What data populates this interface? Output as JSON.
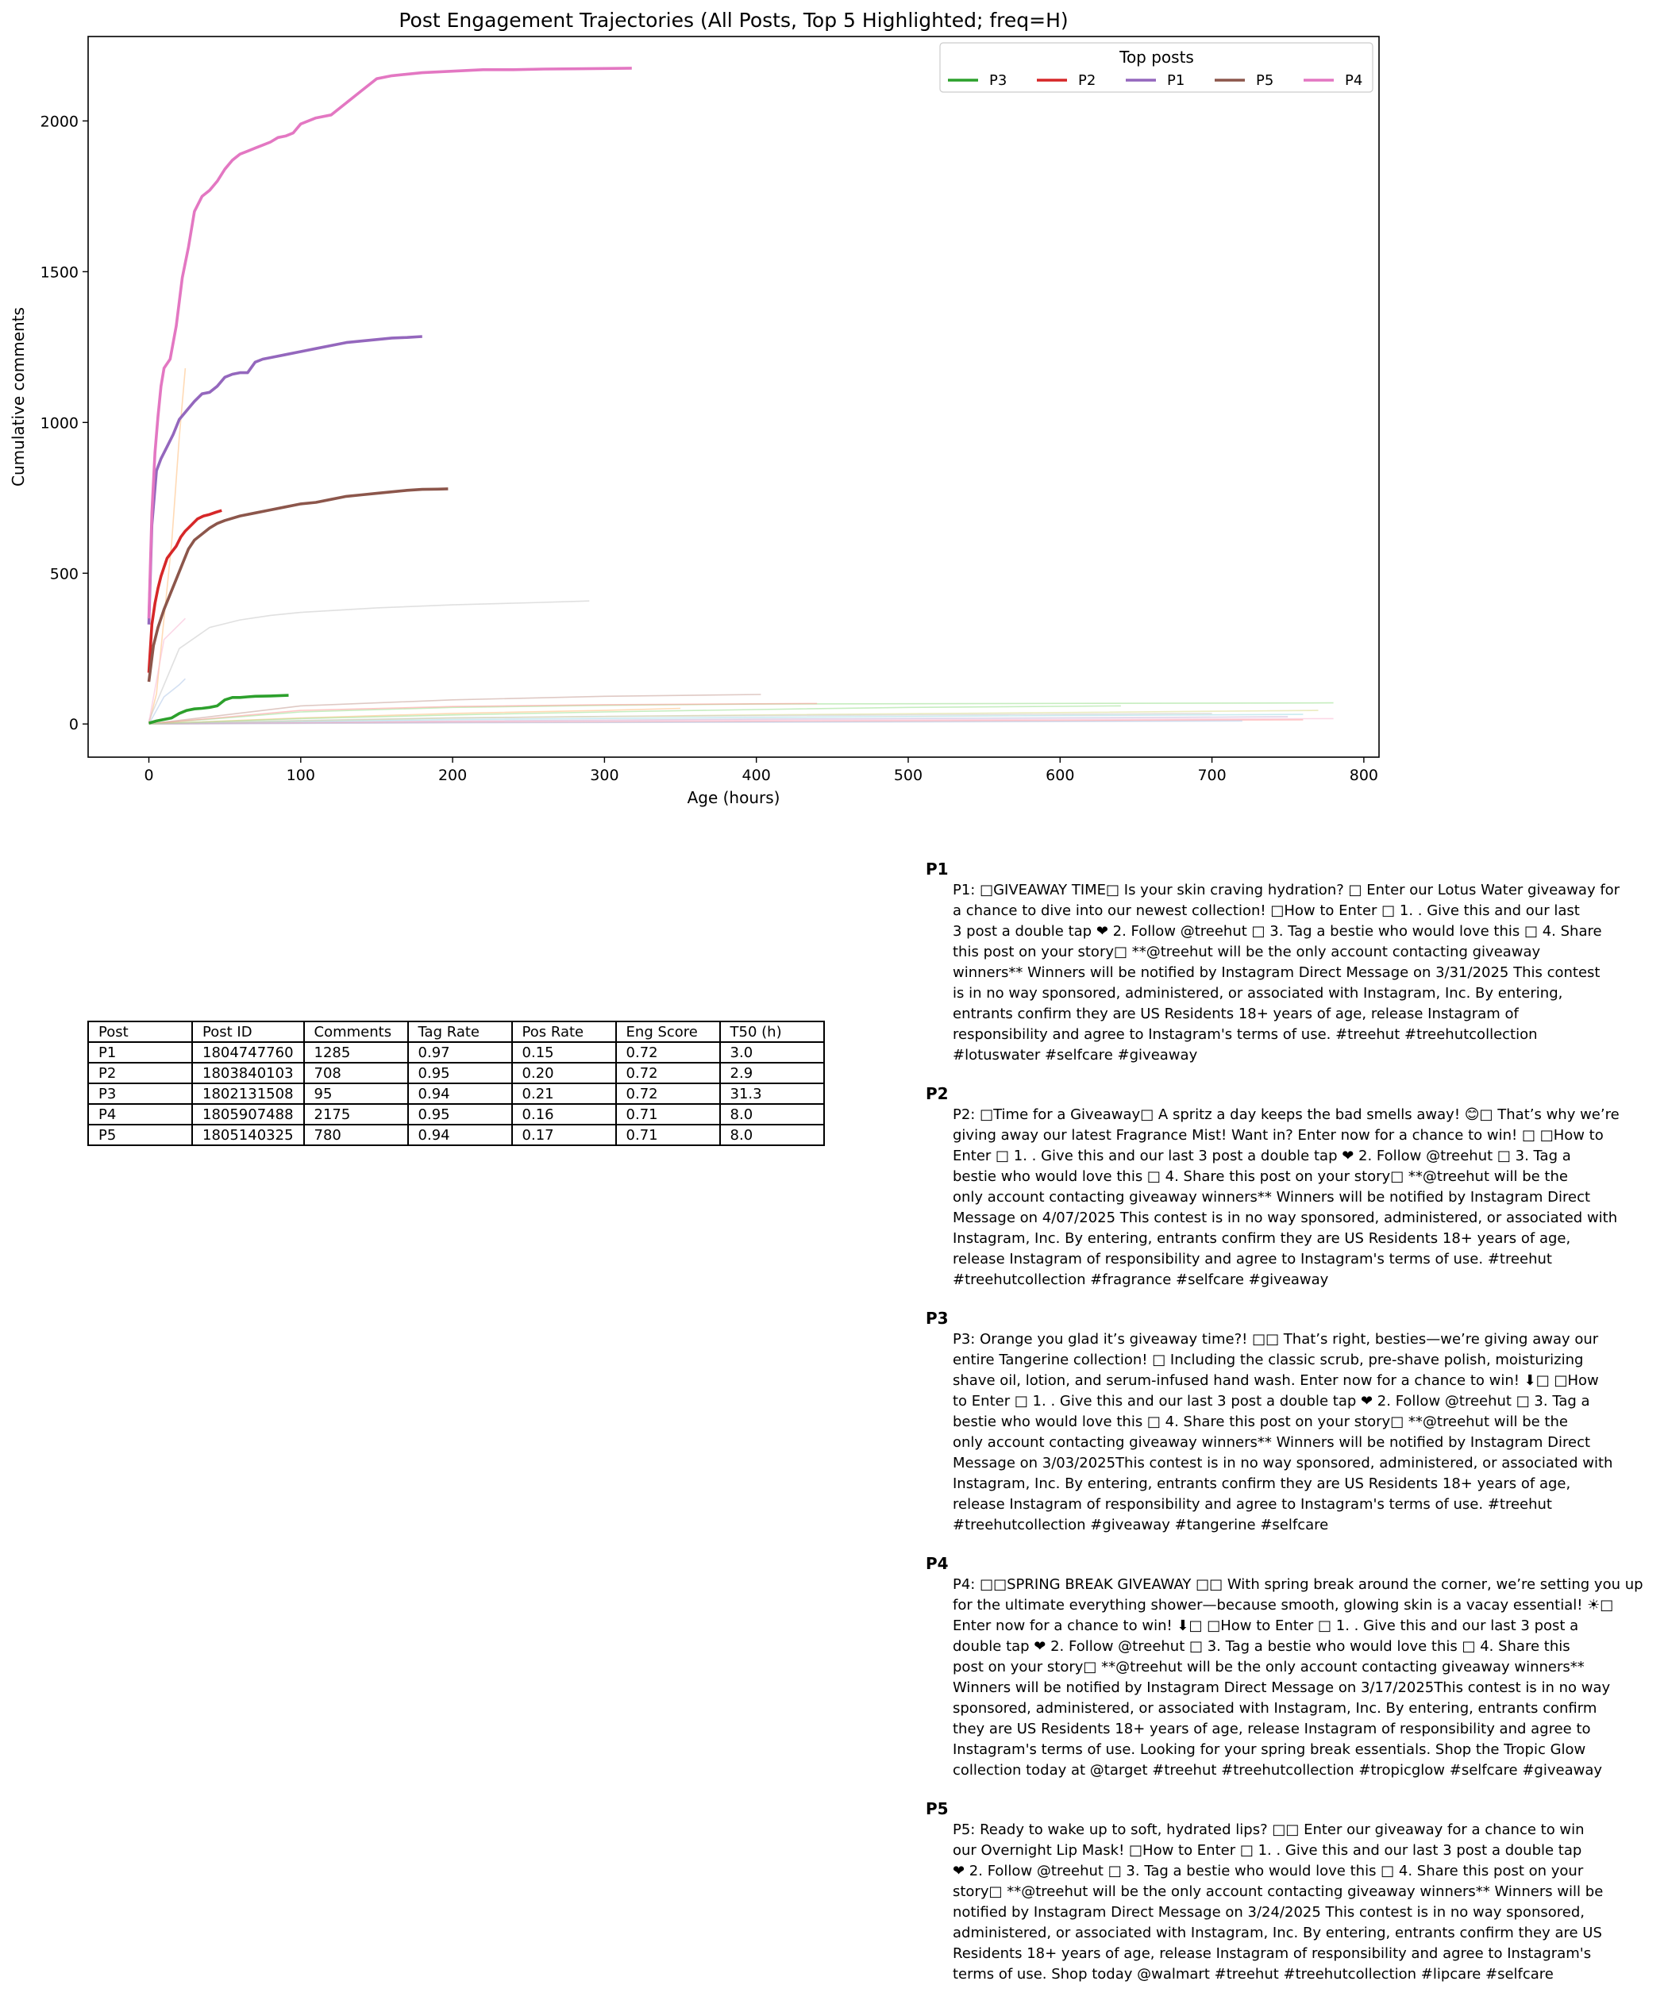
{
  "chart_data": {
    "type": "line",
    "title": "Post Engagement Trajectories (All Posts, Top 5 Highlighted; freq=H)",
    "xlabel": "Age (hours)",
    "ylabel": "Cumulative comments",
    "xlim": [
      -40,
      810
    ],
    "ylim": [
      -110,
      2280
    ],
    "xticks": [
      0,
      100,
      200,
      300,
      400,
      500,
      600,
      700,
      800
    ],
    "yticks": [
      0,
      500,
      1000,
      1500,
      2000
    ],
    "grid": false,
    "legend": {
      "title": "Top posts",
      "placement": "top-right",
      "order": [
        "P3",
        "P2",
        "P1",
        "P5",
        "P4"
      ]
    },
    "series": [
      {
        "name": "P1",
        "color": "#9467bd",
        "x": [
          0,
          2,
          5,
          8,
          12,
          16,
          20,
          25,
          30,
          35,
          40,
          45,
          50,
          55,
          60,
          65,
          70,
          75,
          80,
          90,
          100,
          110,
          120,
          130,
          140,
          150,
          160,
          170,
          180
        ],
        "y": [
          330,
          660,
          840,
          880,
          920,
          960,
          1010,
          1040,
          1070,
          1095,
          1100,
          1120,
          1150,
          1160,
          1165,
          1165,
          1200,
          1210,
          1215,
          1225,
          1235,
          1245,
          1255,
          1265,
          1270,
          1275,
          1280,
          1282,
          1285
        ]
      },
      {
        "name": "P2",
        "color": "#d62728",
        "x": [
          0,
          2,
          4,
          6,
          8,
          10,
          12,
          15,
          18,
          21,
          24,
          28,
          32,
          36,
          40,
          44,
          48
        ],
        "y": [
          170,
          330,
          400,
          450,
          490,
          520,
          550,
          570,
          590,
          620,
          640,
          660,
          680,
          690,
          695,
          702,
          708
        ]
      },
      {
        "name": "P3",
        "color": "#2ca02c",
        "x": [
          0,
          5,
          10,
          15,
          20,
          25,
          30,
          35,
          40,
          45,
          50,
          55,
          60,
          65,
          70,
          80,
          92
        ],
        "y": [
          3,
          10,
          15,
          20,
          35,
          45,
          50,
          52,
          55,
          60,
          80,
          88,
          88,
          90,
          92,
          93,
          95
        ]
      },
      {
        "name": "P4",
        "color": "#e377c2",
        "x": [
          0,
          2,
          4,
          6,
          8,
          10,
          14,
          18,
          22,
          26,
          30,
          35,
          40,
          45,
          50,
          55,
          60,
          65,
          70,
          75,
          80,
          85,
          90,
          95,
          100,
          110,
          120,
          130,
          140,
          150,
          160,
          180,
          200,
          220,
          240,
          260,
          280,
          300,
          318
        ],
        "y": [
          350,
          700,
          900,
          1020,
          1120,
          1180,
          1210,
          1320,
          1480,
          1580,
          1700,
          1750,
          1770,
          1800,
          1840,
          1870,
          1890,
          1900,
          1910,
          1920,
          1930,
          1945,
          1950,
          1960,
          1990,
          2010,
          2020,
          2060,
          2100,
          2140,
          2150,
          2160,
          2165,
          2170,
          2170,
          2172,
          2173,
          2174,
          2175
        ]
      },
      {
        "name": "P5",
        "color": "#8c564b",
        "x": [
          0,
          3,
          6,
          10,
          14,
          18,
          22,
          26,
          30,
          35,
          40,
          45,
          50,
          60,
          70,
          80,
          90,
          100,
          110,
          120,
          130,
          140,
          150,
          160,
          170,
          180,
          190,
          197
        ],
        "y": [
          140,
          260,
          320,
          380,
          430,
          480,
          530,
          580,
          610,
          630,
          650,
          665,
          675,
          690,
          700,
          710,
          720,
          730,
          735,
          745,
          755,
          760,
          765,
          770,
          775,
          778,
          779,
          780
        ]
      },
      {
        "x": [
          0,
          5,
          10,
          15,
          20,
          24
        ],
        "y": [
          0,
          100,
          350,
          600,
          950,
          1180
        ],
        "color": "#ffbb78"
      },
      {
        "x": [
          0,
          20,
          40,
          60,
          80,
          100,
          150,
          200,
          250,
          290
        ],
        "y": [
          10,
          250,
          320,
          345,
          360,
          370,
          385,
          395,
          402,
          408
        ],
        "color": "#c7c7c7"
      },
      {
        "x": [
          0,
          10,
          20,
          24
        ],
        "y": [
          5,
          280,
          330,
          350
        ],
        "color": "#f7b6d2"
      },
      {
        "x": [
          0,
          10,
          20,
          24
        ],
        "y": [
          0,
          90,
          130,
          150
        ],
        "color": "#aec7e8"
      },
      {
        "x": [
          0,
          100,
          200,
          300,
          400,
          780
        ],
        "y": [
          0,
          40,
          55,
          62,
          66,
          70
        ],
        "color": "#98df8a"
      },
      {
        "x": [
          0,
          100,
          200,
          300,
          403
        ],
        "y": [
          0,
          60,
          80,
          92,
          98
        ],
        "color": "#c49c94"
      },
      {
        "x": [
          0,
          100,
          200,
          300,
          440
        ],
        "y": [
          0,
          45,
          58,
          64,
          68
        ],
        "color": "#ff9896"
      },
      {
        "x": [
          0,
          200,
          400,
          600,
          770
        ],
        "y": [
          0,
          20,
          30,
          38,
          45
        ],
        "color": "#dbdb8d"
      },
      {
        "x": [
          0,
          200,
          400,
          600,
          760
        ],
        "y": [
          0,
          15,
          22,
          28,
          32
        ],
        "color": "#9edae5"
      },
      {
        "x": [
          0,
          200,
          400,
          600,
          750
        ],
        "y": [
          0,
          10,
          16,
          20,
          24
        ],
        "color": "#c5b0d5"
      },
      {
        "x": [
          0,
          200,
          400,
          600,
          780
        ],
        "y": [
          0,
          8,
          12,
          15,
          18
        ],
        "color": "#f7b6d2"
      },
      {
        "x": [
          0,
          200,
          400,
          600,
          760
        ],
        "y": [
          0,
          5,
          8,
          11,
          14
        ],
        "color": "#ff9896"
      },
      {
        "x": [
          0,
          200,
          400,
          600,
          720
        ],
        "y": [
          0,
          4,
          6,
          8,
          10
        ],
        "color": "#aec7e8"
      },
      {
        "x": [
          0,
          100,
          200,
          300,
          350
        ],
        "y": [
          0,
          20,
          35,
          45,
          52
        ],
        "color": "#ffbb78"
      },
      {
        "x": [
          0,
          100,
          200,
          300,
          400,
          500,
          640
        ],
        "y": [
          0,
          18,
          30,
          40,
          48,
          55,
          60
        ],
        "color": "#98df8a"
      },
      {
        "x": [
          0,
          100,
          200,
          300,
          500,
          700
        ],
        "y": [
          0,
          12,
          20,
          25,
          30,
          35
        ],
        "color": "#c7c7c7"
      }
    ]
  },
  "table": {
    "headers": [
      "Post",
      "Post ID",
      "Comments",
      "Tag Rate",
      "Pos Rate",
      "Eng Score",
      "T50 (h)"
    ],
    "rows": [
      [
        "P1",
        "1804747760",
        "1285",
        "0.97",
        "0.15",
        "0.72",
        "3.0"
      ],
      [
        "P2",
        "1803840103",
        "708",
        "0.95",
        "0.20",
        "0.72",
        "2.9"
      ],
      [
        "P3",
        "1802131508",
        "95",
        "0.94",
        "0.21",
        "0.72",
        "31.3"
      ],
      [
        "P4",
        "1805907488",
        "2175",
        "0.95",
        "0.16",
        "0.71",
        "8.0"
      ],
      [
        "P5",
        "1805140325",
        "780",
        "0.94",
        "0.17",
        "0.71",
        "8.0"
      ]
    ]
  },
  "captions": [
    {
      "head": "P1",
      "text": "P1: □GIVEAWAY TIME□  Is your skin craving hydration? □ Enter our Lotus Water giveaway for\na chance to dive into our newest collection!   □How to Enter □ 1. . Give this and our last\n3 post a double tap ❤ 2. Follow @treehut □ 3. Tag a bestie who would love this □ 4. Share\nthis post on your story□  **@treehut will be the only account contacting giveaway\nwinners** Winners will be notified by Instagram Direct Message on 3/31/2025 This contest\nis in no way sponsored, administered, or associated with Instagram, Inc. By entering,\nentrants confirm they are US Residents 18+ years of age, release Instagram of\nresponsibility and agree to Instagram's terms of use.  #treehut #treehutcollection\n#lotuswater #selfcare #giveaway"
    },
    {
      "head": "P2",
      "text": "P2: □Time for a Giveaway□  A spritz a day keeps the bad smells away! 😊□ That’s why we’re\ngiving away our latest Fragrance Mist! Want in? Enter now for a chance to win! □  □How to\nEnter □ 1. . Give this and our last 3 post a double tap ❤ 2. Follow @treehut □ 3. Tag a\nbestie who would love this □ 4. Share this post on your story□  **@treehut will be the\nonly account contacting giveaway winners** Winners will be notified by Instagram Direct\nMessage on 4/07/2025 This contest is in no way sponsored, administered, or associated with\nInstagram, Inc. By entering, entrants confirm they are US Residents 18+ years of age,\nrelease Instagram of responsibility and agree to Instagram's terms of use.  #treehut\n#treehutcollection #fragrance #selfcare #giveaway"
    },
    {
      "head": "P3",
      "text": "P3: Orange you glad it’s giveaway time?! □□  That’s right, besties—we’re giving away our\nentire Tangerine collection! □ Including the classic scrub, pre-shave polish, moisturizing\nshave oil, lotion, and serum-infused hand wash.  Enter now for a chance to win! ⬇□   □How\nto Enter □ 1. . Give this and our last 3 post a double tap ❤ 2. Follow @treehut □ 3. Tag a\nbestie who would love this □ 4. Share this post on your story□  **@treehut will be the\nonly account contacting giveaway winners** Winners will be notified by Instagram Direct\nMessage on 3/03/2025This contest is in no way sponsored, administered, or associated with\nInstagram, Inc. By entering, entrants confirm they are US Residents 18+ years of age,\nrelease Instagram of responsibility and agree to Instagram's terms of use.  #treehut\n#treehutcollection #giveaway #tangerine #selfcare"
    },
    {
      "head": "P4",
      "text": "P4: □□SPRING BREAK GIVEAWAY □□  With spring break around the corner, we’re setting you up\nfor the ultimate everything shower—because smooth, glowing skin is a vacay essential! ☀□\nEnter now for a chance to win! ⬇□  □How to Enter □ 1. . Give this and our last 3 post a\ndouble tap ❤ 2. Follow @treehut □ 3. Tag a bestie who would love this □ 4. Share this\npost on your story□  **@treehut will be the only account contacting giveaway winners**\nWinners will be notified by Instagram Direct Message on 3/17/2025This contest is in no way\nsponsored, administered, or associated with Instagram, Inc. By entering, entrants confirm\nthey are US Residents 18+ years of age, release Instagram of responsibility and agree to\nInstagram's terms of use.  Looking for your spring break essentials. Shop the Tropic Glow\ncollection today at @target  #treehut #treehutcollection #tropicglow #selfcare #giveaway"
    },
    {
      "head": "P5",
      "text": "P5: Ready to wake up to soft, hydrated lips? □□  Enter our giveaway for a chance to win\nour Overnight Lip Mask!  □How to Enter □ 1. . Give this and our last 3 post a double tap\n❤ 2. Follow @treehut □ 3. Tag a bestie who would love this □ 4. Share this post on your\nstory□  **@treehut will be the only account contacting giveaway winners** Winners will be\nnotified by Instagram Direct Message on 3/24/2025 This contest is in no way sponsored,\nadministered, or associated with Instagram, Inc. By entering, entrants confirm they are US\nResidents 18+ years of age, release Instagram of responsibility and agree to Instagram's\nterms of use.  Shop today @walmart #treehut #treehutcollection #lipcare #selfcare"
    }
  ]
}
